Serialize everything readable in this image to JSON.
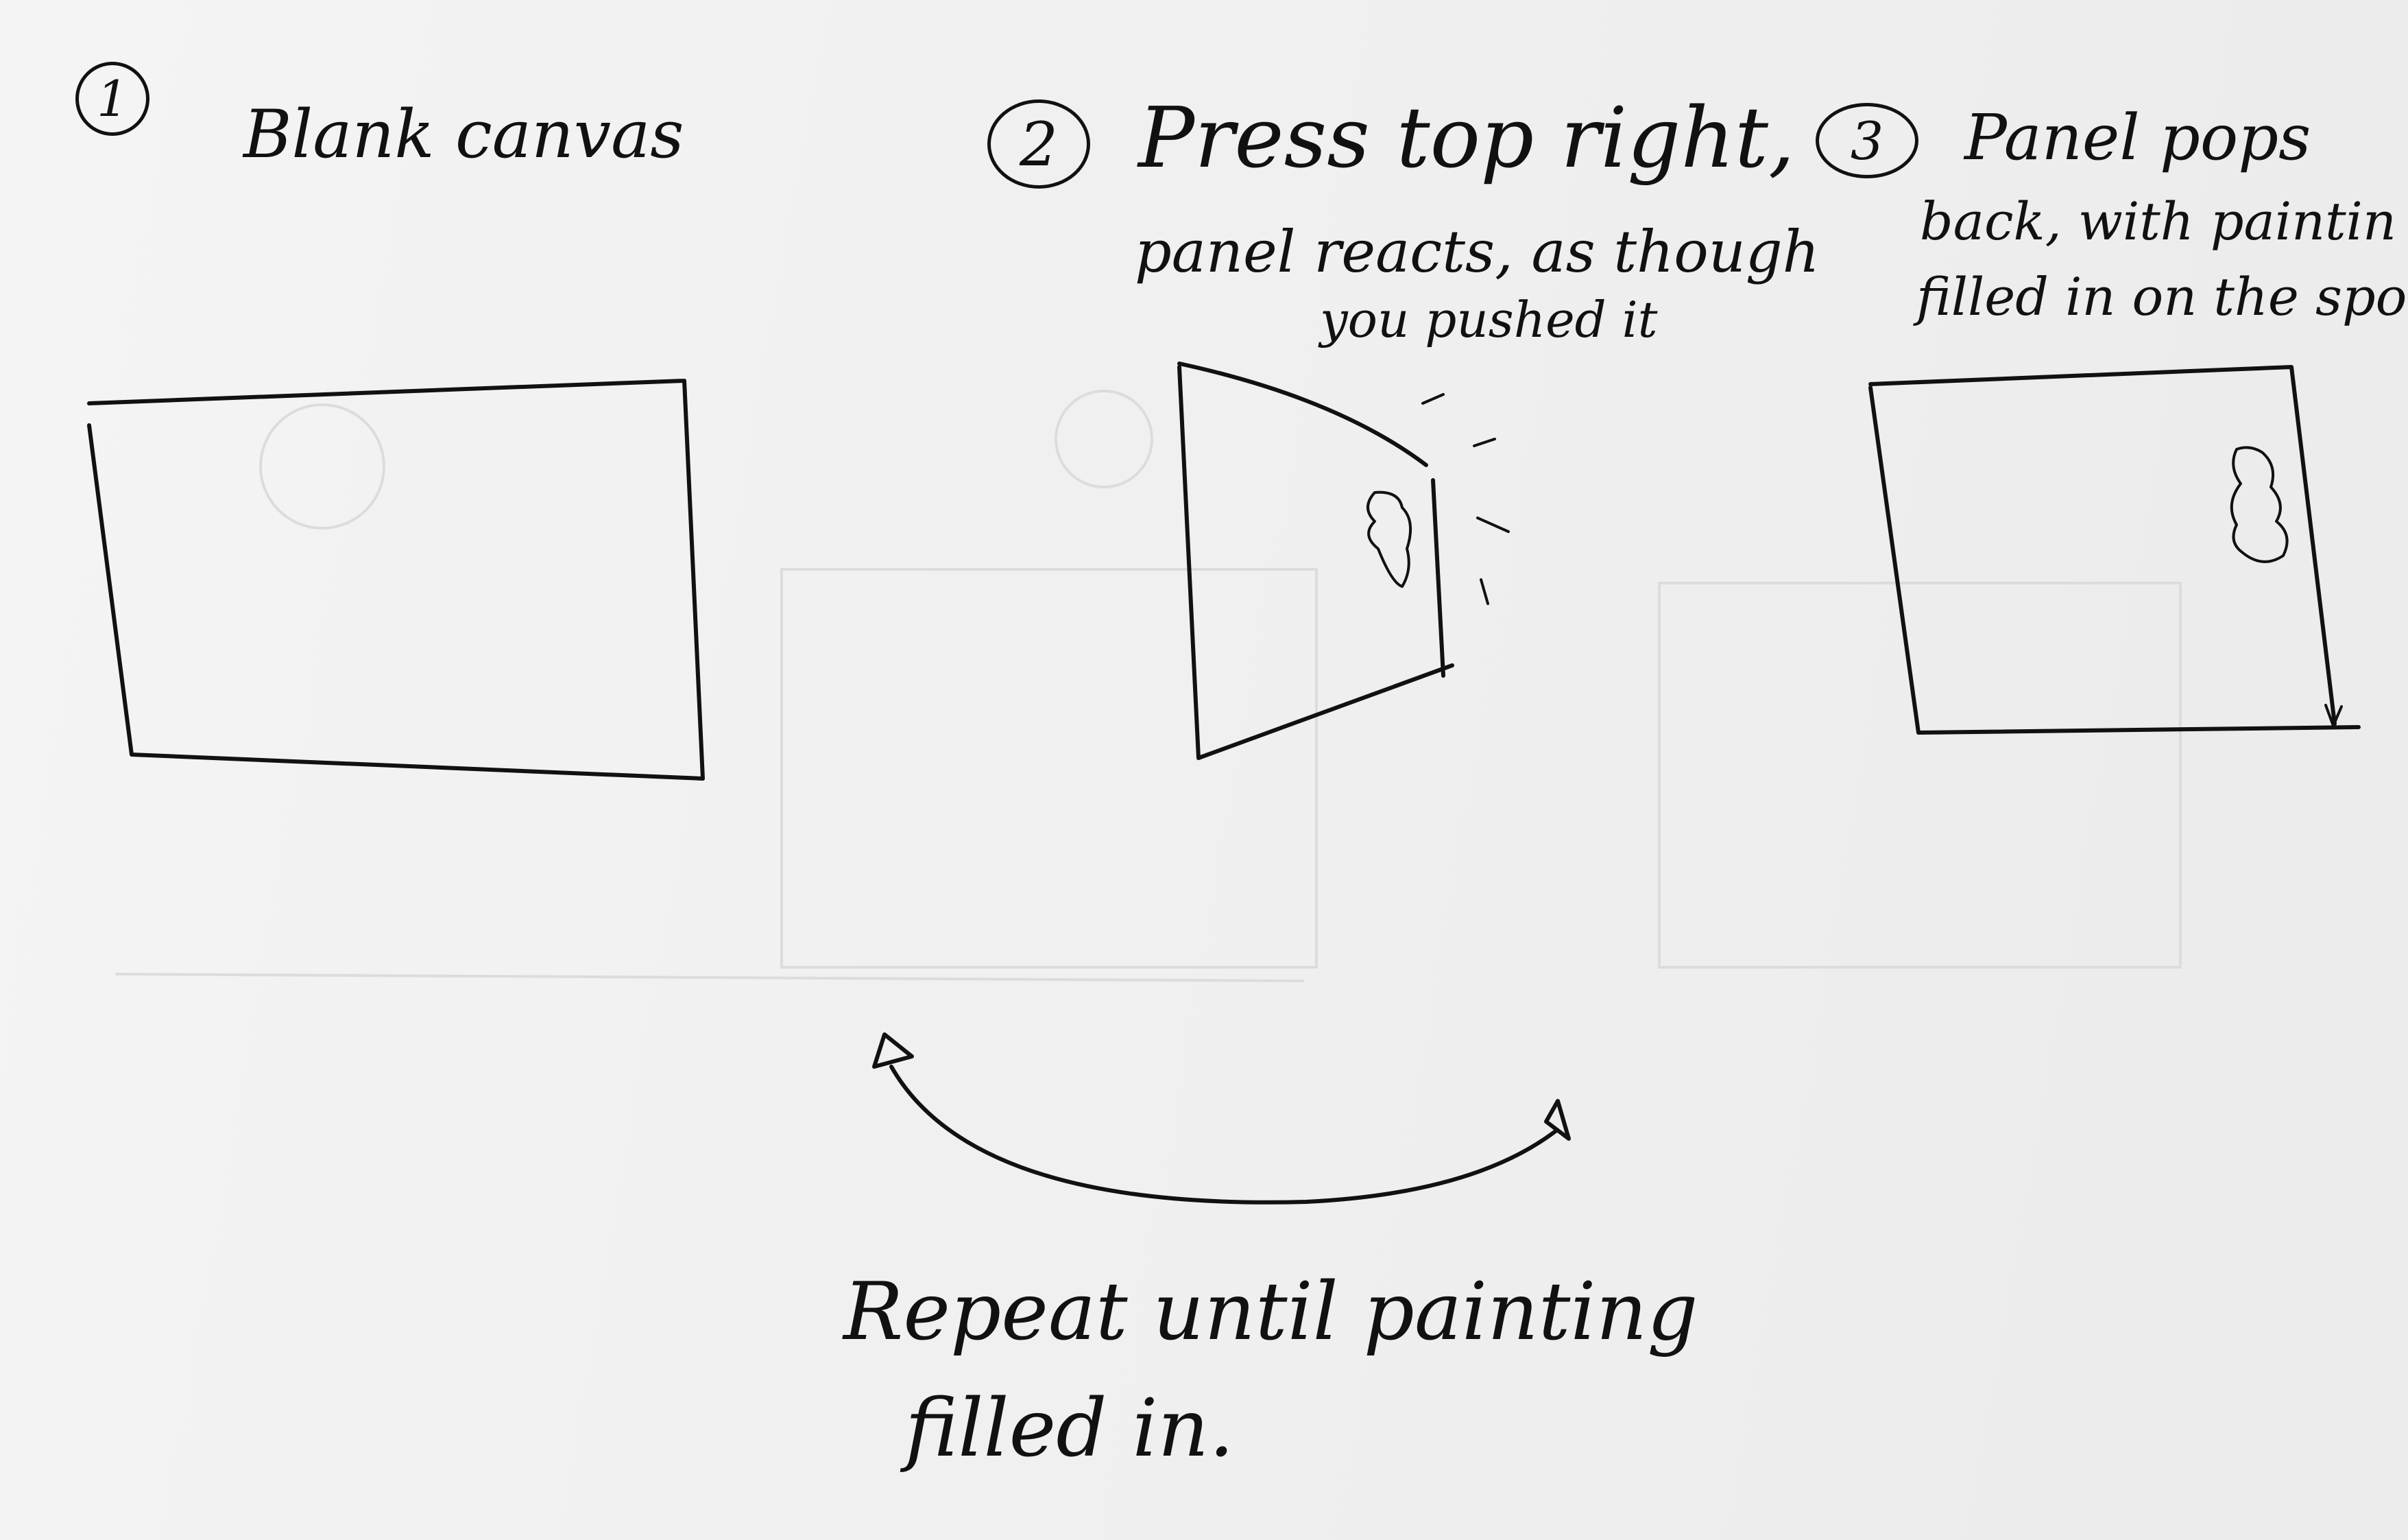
{
  "steps": [
    {
      "number": "1",
      "caption": "Blank canvas"
    },
    {
      "number": "2",
      "caption_line1": "Press top right,",
      "caption_line2": "panel reacts, as though",
      "caption_line3": "you pushed it"
    },
    {
      "number": "3",
      "caption_line1": "Panel pops",
      "caption_line2": "back, with paintin",
      "caption_line3": "filled in on the spot"
    }
  ],
  "loop": {
    "line1": "Repeat until painting",
    "line2": "filled in."
  },
  "colors": {
    "ink": "#111111",
    "paper": "#f0f0f0"
  }
}
